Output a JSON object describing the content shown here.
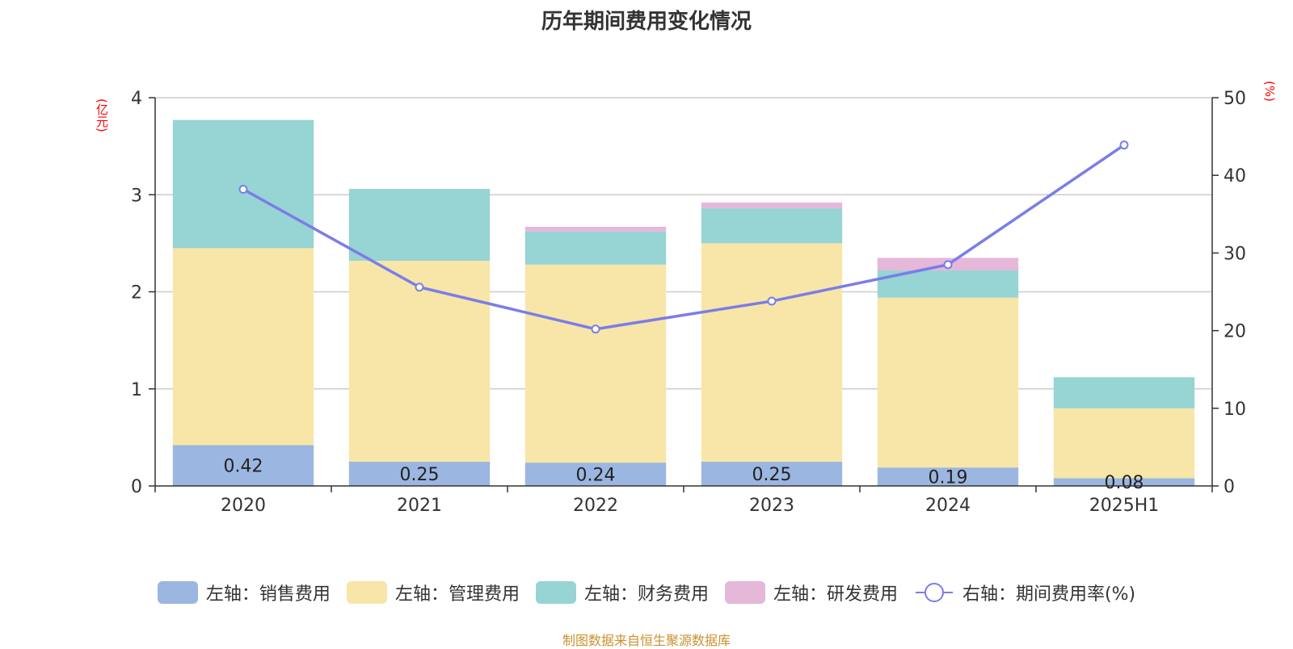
{
  "chart_data": {
    "type": "bar",
    "title": "历年期间费用变化情况",
    "categories": [
      "2020",
      "2021",
      "2022",
      "2023",
      "2024",
      "2025H1"
    ],
    "series": [
      {
        "name": "左轴：销售费用",
        "axis": "left",
        "kind": "stacked-bar",
        "color": "#9bb6e0",
        "values": [
          0.42,
          0.25,
          0.24,
          0.25,
          0.19,
          0.08
        ]
      },
      {
        "name": "左轴：管理费用",
        "axis": "left",
        "kind": "stacked-bar",
        "color": "#f7e6a8",
        "values": [
          2.03,
          2.07,
          2.04,
          2.25,
          1.75,
          0.72
        ]
      },
      {
        "name": "左轴：财务费用",
        "axis": "left",
        "kind": "stacked-bar",
        "color": "#97d4d4",
        "values": [
          1.32,
          0.74,
          0.34,
          0.36,
          0.28,
          0.32
        ]
      },
      {
        "name": "左轴：研发费用",
        "axis": "left",
        "kind": "stacked-bar",
        "color": "#e5b8da",
        "values": [
          0,
          0,
          0.05,
          0.06,
          0.13,
          0
        ]
      },
      {
        "name": "右轴：期间费用率(%)",
        "axis": "right",
        "kind": "line",
        "color": "#7b7de8",
        "values": [
          38.2,
          25.6,
          20.2,
          23.8,
          28.5,
          43.9
        ]
      }
    ],
    "data_labels_series": 0,
    "left_axis": {
      "unit": "(亿元)",
      "ylim": [
        0,
        4
      ],
      "ticks": [
        0,
        1,
        2,
        3,
        4
      ]
    },
    "right_axis": {
      "unit": "(%)",
      "ylim": [
        0,
        50
      ],
      "ticks": [
        0,
        10,
        20,
        30,
        40,
        50
      ]
    },
    "grid": true,
    "legend_position": "bottom"
  },
  "source_note": "制图数据来自恒生聚源数据库"
}
